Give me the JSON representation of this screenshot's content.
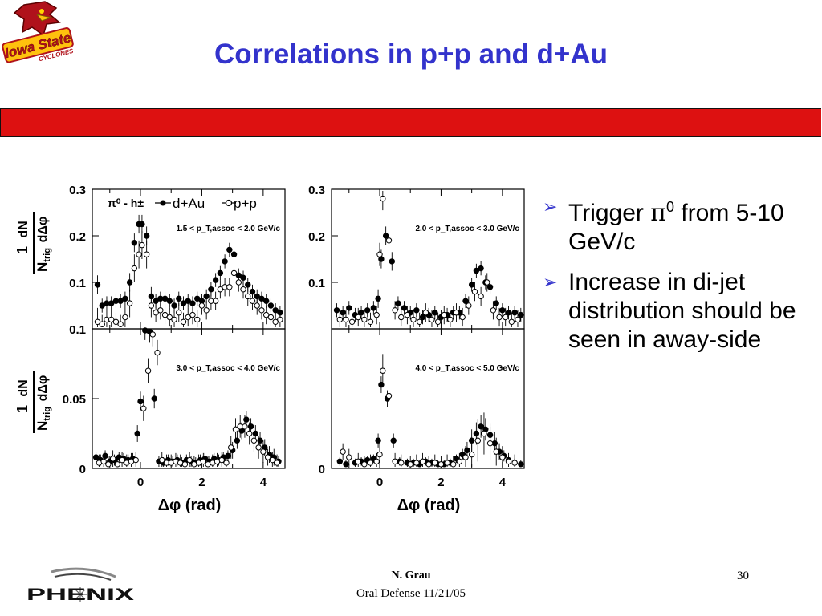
{
  "slide": {
    "title": "Correlations in p+p and d+Au",
    "logo_text_line1": "Iowa State",
    "logo_text_line2": "CYCLONES",
    "accent_color": "#3333cc",
    "banner_color": "#dd1111"
  },
  "bullets": [
    {
      "pre": "Trigger ",
      "greek": "π",
      "sup": "0",
      "post": " from 5-10 GeV/c"
    },
    {
      "pre": "Increase in di-jet distribution should be seen in away-side",
      "greek": "",
      "sup": "",
      "post": ""
    }
  ],
  "footer": {
    "author": "N. Grau",
    "occasion": "Oral Defense 11/21/05",
    "page": "30",
    "experiment_logo": "PHENIX"
  },
  "figure": {
    "legend_pair": "π⁰ - h±",
    "legend_dau": "d+Au",
    "legend_pp": "p+p",
    "xlabel": "Δφ (rad)",
    "ylabel": "1/N_trig dN/dΔφ"
  },
  "chart_data": [
    {
      "type": "scatter",
      "annotation": "1.5 < p_T,assoc < 2.0 GeV/c",
      "xlim": [
        -1.57,
        4.71
      ],
      "ylim": [
        0,
        0.3
      ],
      "yticks": [
        "0.3",
        "0.2",
        "0.1"
      ],
      "ytick_values": [
        0.3,
        0.2,
        0.1
      ],
      "xticks": [
        "0",
        "2",
        "4"
      ],
      "series": [
        {
          "name": "d+Au",
          "x": [
            -1.4,
            -1.25,
            -1.1,
            -0.95,
            -0.8,
            -0.65,
            -0.5,
            -0.35,
            -0.2,
            -0.05,
            0.05,
            0.2,
            0.35,
            0.5,
            0.65,
            0.8,
            0.95,
            1.1,
            1.25,
            1.4,
            1.55,
            1.7,
            1.85,
            2.0,
            2.15,
            2.3,
            2.45,
            2.6,
            2.75,
            2.9,
            3.05,
            3.2,
            3.35,
            3.5,
            3.65,
            3.8,
            3.95,
            4.1,
            4.25,
            4.4,
            4.55
          ],
          "y": [
            0.095,
            0.05,
            0.055,
            0.055,
            0.06,
            0.06,
            0.065,
            0.1,
            0.185,
            0.225,
            0.225,
            0.2,
            0.07,
            0.06,
            0.065,
            0.065,
            0.06,
            0.05,
            0.065,
            0.055,
            0.06,
            0.055,
            0.065,
            0.06,
            0.07,
            0.085,
            0.105,
            0.12,
            0.145,
            0.17,
            0.16,
            0.115,
            0.11,
            0.095,
            0.08,
            0.07,
            0.065,
            0.06,
            0.05,
            0.04,
            0.035
          ],
          "err": [
            0.02,
            0.015,
            0.015,
            0.015,
            0.015,
            0.015,
            0.015,
            0.02,
            0.02,
            0.02,
            0.02,
            0.02,
            0.02,
            0.015,
            0.015,
            0.015,
            0.015,
            0.015,
            0.015,
            0.015,
            0.015,
            0.015,
            0.015,
            0.015,
            0.015,
            0.015,
            0.015,
            0.015,
            0.015,
            0.015,
            0.015,
            0.015,
            0.015,
            0.015,
            0.015,
            0.015,
            0.015,
            0.015,
            0.015,
            0.015,
            0.015
          ]
        },
        {
          "name": "p+p",
          "x": [
            -1.4,
            -1.25,
            -1.1,
            -0.95,
            -0.8,
            -0.65,
            -0.5,
            -0.35,
            -0.2,
            -0.05,
            0.05,
            0.2,
            0.35,
            0.5,
            0.65,
            0.8,
            0.95,
            1.1,
            1.25,
            1.4,
            1.55,
            1.7,
            1.85,
            2.0,
            2.15,
            2.3,
            2.45,
            2.6,
            2.75,
            2.9,
            3.05,
            3.2,
            3.35,
            3.5,
            3.65,
            3.8,
            3.95,
            4.1,
            4.25,
            4.4,
            4.55
          ],
          "y": [
            0.015,
            0.01,
            0.02,
            0.02,
            0.015,
            0.01,
            0.025,
            0.055,
            0.13,
            0.16,
            0.18,
            0.16,
            0.05,
            0.035,
            0.04,
            0.03,
            0.025,
            0.02,
            0.035,
            0.015,
            0.025,
            0.03,
            0.02,
            0.05,
            0.04,
            0.06,
            0.06,
            0.085,
            0.09,
            0.09,
            0.12,
            0.1,
            0.085,
            0.07,
            0.06,
            0.05,
            0.04,
            0.03,
            0.025,
            0.015,
            0.02
          ],
          "err": [
            0.03,
            0.02,
            0.02,
            0.02,
            0.02,
            0.02,
            0.025,
            0.03,
            0.03,
            0.03,
            0.03,
            0.03,
            0.025,
            0.02,
            0.02,
            0.02,
            0.02,
            0.02,
            0.02,
            0.02,
            0.02,
            0.02,
            0.02,
            0.02,
            0.02,
            0.02,
            0.02,
            0.02,
            0.02,
            0.02,
            0.02,
            0.02,
            0.02,
            0.02,
            0.02,
            0.02,
            0.02,
            0.02,
            0.02,
            0.02,
            0.02
          ]
        }
      ]
    },
    {
      "type": "scatter",
      "annotation": "2.0 < p_T,assoc < 3.0 GeV/c",
      "xlim": [
        -1.57,
        4.71
      ],
      "ylim": [
        0,
        0.3
      ],
      "yticks": [
        "0.3",
        "0.2",
        "0.1"
      ],
      "ytick_values": [
        0.3,
        0.2,
        0.1
      ],
      "xticks": [
        "0",
        "2",
        "4"
      ],
      "series": [
        {
          "name": "d+Au",
          "x": [
            -1.4,
            -1.2,
            -1.0,
            -0.8,
            -0.6,
            -0.4,
            -0.2,
            -0.05,
            0.05,
            0.2,
            0.4,
            0.6,
            0.8,
            1.0,
            1.2,
            1.4,
            1.6,
            1.8,
            2.0,
            2.2,
            2.4,
            2.6,
            2.8,
            3.0,
            3.15,
            3.3,
            3.45,
            3.6,
            3.8,
            4.0,
            4.2,
            4.4,
            4.6
          ],
          "y": [
            0.04,
            0.035,
            0.045,
            0.03,
            0.035,
            0.04,
            0.045,
            0.065,
            0.15,
            0.2,
            0.145,
            0.055,
            0.045,
            0.035,
            0.04,
            0.025,
            0.03,
            0.035,
            0.025,
            0.03,
            0.035,
            0.035,
            0.06,
            0.095,
            0.125,
            0.13,
            0.1,
            0.09,
            0.055,
            0.04,
            0.035,
            0.035,
            0.03
          ],
          "err": [
            0.015,
            0.015,
            0.015,
            0.015,
            0.015,
            0.015,
            0.015,
            0.02,
            0.02,
            0.02,
            0.02,
            0.015,
            0.015,
            0.015,
            0.015,
            0.015,
            0.015,
            0.015,
            0.015,
            0.015,
            0.015,
            0.015,
            0.015,
            0.015,
            0.015,
            0.015,
            0.015,
            0.015,
            0.015,
            0.015,
            0.015,
            0.015,
            0.015
          ]
        },
        {
          "name": "p+p",
          "x": [
            -1.3,
            -1.1,
            -0.9,
            -0.7,
            -0.5,
            -0.3,
            -0.1,
            0.0,
            0.1,
            0.3,
            0.5,
            0.7,
            0.9,
            1.1,
            1.3,
            1.5,
            1.7,
            1.9,
            2.1,
            2.3,
            2.5,
            2.7,
            2.9,
            3.1,
            3.3,
            3.5,
            3.7,
            3.9,
            4.1,
            4.3,
            4.5
          ],
          "y": [
            0.02,
            0.02,
            0.015,
            0.025,
            0.02,
            0.015,
            0.03,
            0.16,
            0.28,
            0.19,
            0.04,
            0.025,
            0.03,
            0.02,
            0.015,
            0.035,
            0.02,
            0.015,
            0.03,
            0.02,
            0.035,
            0.025,
            0.05,
            0.08,
            0.07,
            0.1,
            0.04,
            0.025,
            0.025,
            0.015,
            0.02
          ],
          "err": [
            0.02,
            0.02,
            0.02,
            0.02,
            0.02,
            0.02,
            0.02,
            0.025,
            0.025,
            0.025,
            0.02,
            0.02,
            0.02,
            0.02,
            0.02,
            0.02,
            0.02,
            0.02,
            0.02,
            0.02,
            0.02,
            0.02,
            0.02,
            0.02,
            0.02,
            0.02,
            0.02,
            0.02,
            0.02,
            0.02,
            0.02
          ]
        }
      ]
    },
    {
      "type": "scatter",
      "annotation": "3.0 < p_T,assoc < 4.0 GeV/c",
      "xlim": [
        -1.57,
        4.71
      ],
      "ylim": [
        0,
        0.1
      ],
      "yticks": [
        "0.1",
        "0.05",
        "0"
      ],
      "ytick_values": [
        0.1,
        0.05,
        0.0
      ],
      "xticks": [
        "0",
        "2",
        "4"
      ],
      "series": [
        {
          "name": "d+Au",
          "x": [
            -1.45,
            -1.3,
            -1.15,
            -1.0,
            -0.85,
            -0.7,
            -0.55,
            -0.4,
            -0.25,
            -0.1,
            0.0,
            0.15,
            0.3,
            0.45,
            0.6,
            0.75,
            0.9,
            1.05,
            1.2,
            1.35,
            1.5,
            1.65,
            1.8,
            1.95,
            2.1,
            2.25,
            2.4,
            2.55,
            2.7,
            2.85,
            3.0,
            3.15,
            3.3,
            3.45,
            3.6,
            3.75,
            3.9,
            4.05,
            4.2,
            4.35,
            4.5
          ],
          "y": [
            0.008,
            0.006,
            0.009,
            0.005,
            0.006,
            0.008,
            0.007,
            0.006,
            0.007,
            0.025,
            0.048,
            0.1,
            0.098,
            0.05,
            0.005,
            0.004,
            0.006,
            0.005,
            0.006,
            0.004,
            0.006,
            0.005,
            0.004,
            0.006,
            0.007,
            0.005,
            0.007,
            0.006,
            0.008,
            0.009,
            0.013,
            0.02,
            0.027,
            0.035,
            0.03,
            0.025,
            0.02,
            0.015,
            0.01,
            0.008,
            0.005
          ],
          "err": [
            0.004,
            0.004,
            0.004,
            0.004,
            0.004,
            0.004,
            0.004,
            0.004,
            0.004,
            0.006,
            0.007,
            0.008,
            0.008,
            0.007,
            0.004,
            0.004,
            0.004,
            0.004,
            0.004,
            0.004,
            0.004,
            0.004,
            0.004,
            0.004,
            0.004,
            0.004,
            0.004,
            0.004,
            0.004,
            0.004,
            0.006,
            0.006,
            0.006,
            0.006,
            0.006,
            0.006,
            0.006,
            0.006,
            0.006,
            0.006,
            0.004
          ]
        },
        {
          "name": "p+p",
          "x": [
            -1.35,
            -1.2,
            -1.05,
            -0.9,
            -0.75,
            -0.6,
            -0.45,
            -0.3,
            -0.15,
            0.1,
            0.25,
            0.4,
            0.55,
            0.7,
            0.85,
            1.0,
            1.15,
            1.3,
            1.45,
            1.6,
            1.75,
            1.9,
            2.05,
            2.2,
            2.35,
            2.5,
            2.65,
            2.8,
            2.95,
            3.1,
            3.25,
            3.4,
            3.55,
            3.7,
            3.85,
            4.0,
            4.15,
            4.3,
            4.45
          ],
          "y": [
            0.004,
            0.005,
            0.003,
            0.007,
            0.003,
            0.006,
            0.004,
            0.005,
            0.006,
            0.043,
            0.07,
            0.096,
            0.083,
            0.006,
            0.004,
            0.004,
            0.005,
            0.004,
            0.003,
            0.006,
            0.003,
            0.004,
            0.005,
            0.003,
            0.004,
            0.005,
            0.006,
            0.004,
            0.015,
            0.028,
            0.03,
            0.03,
            0.025,
            0.02,
            0.015,
            0.012,
            0.008,
            0.006,
            0.004
          ],
          "err": [
            0.006,
            0.006,
            0.006,
            0.006,
            0.006,
            0.006,
            0.006,
            0.006,
            0.006,
            0.009,
            0.009,
            0.009,
            0.009,
            0.006,
            0.006,
            0.006,
            0.006,
            0.006,
            0.006,
            0.006,
            0.006,
            0.006,
            0.006,
            0.006,
            0.006,
            0.006,
            0.006,
            0.006,
            0.008,
            0.008,
            0.008,
            0.008,
            0.008,
            0.008,
            0.008,
            0.008,
            0.006,
            0.006,
            0.006
          ]
        }
      ]
    },
    {
      "type": "scatter",
      "annotation": "4.0 < p_T,assoc < 5.0 GeV/c",
      "xlim": [
        -1.57,
        4.71
      ],
      "ylim": [
        0,
        0.1
      ],
      "yticks": [
        "0"
      ],
      "ytick_values": [
        0.0
      ],
      "xticks": [
        "0",
        "2",
        "4"
      ],
      "series": [
        {
          "name": "d+Au",
          "x": [
            -1.3,
            -1.1,
            -0.8,
            -0.6,
            -0.4,
            -0.2,
            -0.05,
            0.05,
            0.25,
            0.45,
            0.65,
            0.9,
            1.1,
            1.3,
            1.5,
            1.7,
            1.9,
            2.1,
            2.3,
            2.5,
            2.7,
            2.85,
            3.0,
            3.15,
            3.3,
            3.45,
            3.6,
            3.75,
            3.9,
            4.05,
            4.2,
            4.4,
            4.6
          ],
          "y": [
            0.005,
            0.003,
            0.004,
            0.005,
            0.006,
            0.007,
            0.02,
            0.06,
            0.05,
            0.02,
            0.005,
            0.004,
            0.004,
            0.003,
            0.005,
            0.004,
            0.003,
            0.003,
            0.004,
            0.007,
            0.01,
            0.013,
            0.02,
            0.025,
            0.03,
            0.028,
            0.024,
            0.018,
            0.012,
            0.009,
            0.006,
            0.004,
            0.003
          ],
          "err": [
            0.003,
            0.003,
            0.003,
            0.003,
            0.003,
            0.003,
            0.005,
            0.006,
            0.006,
            0.005,
            0.003,
            0.003,
            0.003,
            0.003,
            0.003,
            0.003,
            0.003,
            0.003,
            0.003,
            0.003,
            0.004,
            0.006,
            0.008,
            0.008,
            0.008,
            0.008,
            0.008,
            0.008,
            0.006,
            0.004,
            0.003,
            0.003,
            0.003
          ]
        },
        {
          "name": "p+p",
          "x": [
            -1.2,
            -1.0,
            -0.7,
            -0.5,
            -0.3,
            -0.1,
            0.0,
            0.1,
            0.3,
            0.5,
            0.7,
            1.0,
            1.2,
            1.4,
            1.6,
            1.8,
            2.0,
            2.2,
            2.4,
            2.6,
            2.8,
            3.0,
            3.2,
            3.4,
            3.6,
            3.8,
            4.0,
            4.2,
            4.4
          ],
          "y": [
            0.012,
            0.008,
            0.005,
            0.003,
            0.004,
            0.005,
            0.01,
            0.07,
            0.052,
            0.005,
            0.004,
            0.003,
            0.004,
            0.005,
            0.003,
            0.004,
            0.003,
            0.004,
            0.003,
            0.005,
            0.008,
            0.01,
            0.02,
            0.025,
            0.018,
            0.012,
            0.008,
            0.005,
            0.004
          ],
          "err": [
            0.006,
            0.006,
            0.006,
            0.006,
            0.006,
            0.006,
            0.008,
            0.012,
            0.012,
            0.006,
            0.006,
            0.006,
            0.006,
            0.006,
            0.006,
            0.006,
            0.006,
            0.006,
            0.006,
            0.006,
            0.008,
            0.012,
            0.015,
            0.015,
            0.012,
            0.01,
            0.008,
            0.006,
            0.006
          ]
        }
      ]
    }
  ]
}
